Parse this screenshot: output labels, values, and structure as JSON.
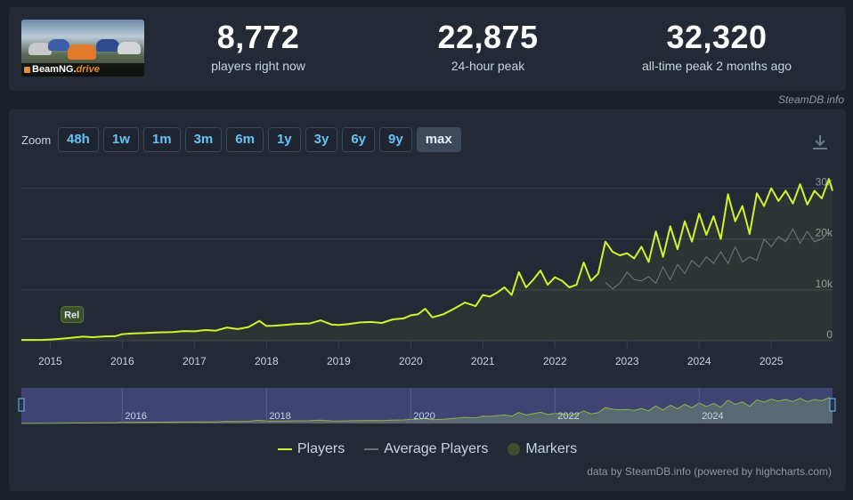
{
  "game": {
    "name_main": "BeamNG.",
    "name_accent": "drive"
  },
  "stats": [
    {
      "value": "8,772",
      "label": "players right now"
    },
    {
      "value": "22,875",
      "label": "24-hour peak"
    },
    {
      "value": "32,320",
      "label": "all-time peak 2 months ago"
    }
  ],
  "credit_top": "SteamDB.info",
  "zoom": {
    "label": "Zoom",
    "buttons": [
      "48h",
      "1w",
      "1m",
      "3m",
      "6m",
      "1y",
      "3y",
      "6y",
      "9y",
      "max"
    ],
    "active": "max"
  },
  "legend": {
    "players": "Players",
    "average": "Average Players",
    "markers": "Markers"
  },
  "credit_bottom": "data by SteamDB.info (powered by highcharts.com)",
  "colors": {
    "players": "#d2f22a",
    "average": "#6b7074",
    "marker": "#3d4f2c",
    "navigator_bg": "#3f4473",
    "link": "#67c1f5"
  },
  "chart_data": {
    "type": "line",
    "y_ticks": [
      "0",
      "10k",
      "20k",
      "30k"
    ],
    "ylim": [
      0,
      32000
    ],
    "x_ticks": [
      "2015",
      "2016",
      "2017",
      "2018",
      "2019",
      "2020",
      "2021",
      "2022",
      "2023",
      "2024",
      "2025"
    ],
    "navigator_ticks": [
      "2016",
      "2018",
      "2020",
      "2022",
      "2024"
    ],
    "marker_label": "Rel",
    "series": [
      {
        "name": "Players",
        "x": [
          2014.6,
          2014.75,
          2014.9,
          2015.0,
          2015.15,
          2015.3,
          2015.45,
          2015.6,
          2015.75,
          2015.9,
          2016.0,
          2016.15,
          2016.3,
          2016.5,
          2016.7,
          2016.85,
          2017.0,
          2017.15,
          2017.3,
          2017.45,
          2017.6,
          2017.75,
          2017.9,
          2018.0,
          2018.1,
          2018.25,
          2018.4,
          2018.6,
          2018.75,
          2018.9,
          2019.0,
          2019.15,
          2019.3,
          2019.45,
          2019.6,
          2019.75,
          2019.9,
          2020.0,
          2020.1,
          2020.2,
          2020.3,
          2020.45,
          2020.6,
          2020.75,
          2020.9,
          2021.0,
          2021.1,
          2021.2,
          2021.3,
          2021.4,
          2021.5,
          2021.6,
          2021.7,
          2021.8,
          2021.9,
          2022.0,
          2022.1,
          2022.2,
          2022.3,
          2022.4,
          2022.5,
          2022.6,
          2022.7,
          2022.8,
          2022.9,
          2023.0,
          2023.1,
          2023.2,
          2023.3,
          2023.4,
          2023.5,
          2023.6,
          2023.7,
          2023.8,
          2023.9,
          2024.0,
          2024.1,
          2024.2,
          2024.3,
          2024.4,
          2024.5,
          2024.6,
          2024.7,
          2024.8,
          2024.9,
          2025.0,
          2025.1,
          2025.2,
          2025.3,
          2025.4,
          2025.5,
          2025.6,
          2025.7,
          2025.8,
          2025.85
        ],
        "values": [
          150,
          160,
          180,
          250,
          400,
          600,
          800,
          700,
          850,
          900,
          1300,
          1450,
          1500,
          1650,
          1700,
          1900,
          1850,
          2100,
          2000,
          2600,
          2300,
          2700,
          3900,
          2900,
          2950,
          3100,
          3300,
          3400,
          4000,
          3200,
          3100,
          3300,
          3600,
          3700,
          3500,
          4200,
          4400,
          5000,
          5200,
          6300,
          4600,
          5200,
          6300,
          7500,
          6800,
          9000,
          8700,
          9500,
          10500,
          9000,
          13500,
          10500,
          12000,
          13800,
          11000,
          12500,
          11800,
          10500,
          11000,
          15400,
          11800,
          13200,
          19500,
          17500,
          16800,
          17200,
          16200,
          18500,
          15500,
          21500,
          16500,
          22500,
          18000,
          23500,
          19500,
          25000,
          20800,
          24500,
          20000,
          28800,
          23500,
          26500,
          21000,
          29000,
          26500,
          30000,
          27500,
          29500,
          27000,
          30800,
          26800,
          29500,
          28000,
          31800,
          29500
        ]
      },
      {
        "name": "Average Players",
        "x": [
          2022.7,
          2022.8,
          2022.9,
          2023.0,
          2023.1,
          2023.2,
          2023.3,
          2023.4,
          2023.5,
          2023.6,
          2023.7,
          2023.8,
          2023.9,
          2024.0,
          2024.1,
          2024.2,
          2024.3,
          2024.4,
          2024.5,
          2024.6,
          2024.7,
          2024.8,
          2024.9,
          2025.0,
          2025.1,
          2025.2,
          2025.3,
          2025.4,
          2025.5,
          2025.6,
          2025.7,
          2025.8
        ],
        "values": [
          11500,
          10200,
          11300,
          13500,
          12000,
          11800,
          12600,
          11300,
          14500,
          12000,
          15000,
          13200,
          15800,
          14500,
          16500,
          15200,
          17500,
          15200,
          18500,
          15500,
          16500,
          15800,
          20000,
          18500,
          20500,
          19500,
          22000,
          19200,
          21500,
          19500,
          20000,
          21500
        ]
      }
    ]
  }
}
